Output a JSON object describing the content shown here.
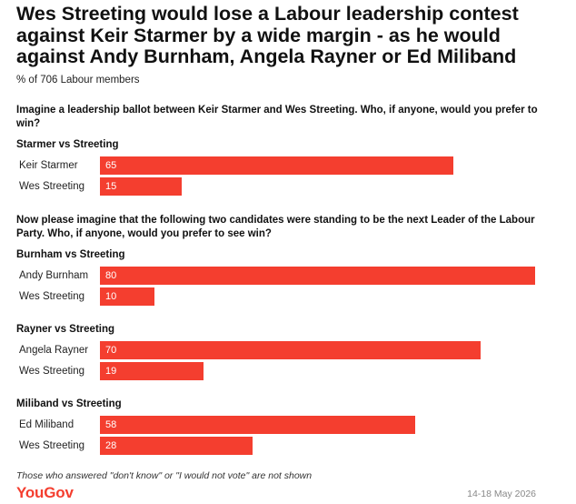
{
  "title": "Wes Streeting would lose a Labour leadership contest against Keir Starmer by a wide margin - as he would against Andy Burnham, Angela Rayner or Ed Miliband",
  "subtitle": "% of 706 Labour members",
  "question_1": "Imagine a leadership ballot between Keir Starmer and Wes Streeting. Who, if anyone, would you prefer to win?",
  "question_2": "Now please imagine that the following two candidates were standing to be the next Leader of the Labour Party. Who, if anyone, would you prefer to see win?",
  "footnote": "Those who answered \"don't know\" or \"I would not vote\" are not shown",
  "brand": "YouGov",
  "date": "14-18 May 2026",
  "bar_color": "#f43e2f",
  "chart_data": {
    "type": "bar",
    "orientation": "horizontal",
    "unit": "%",
    "xlim": [
      0,
      80
    ],
    "groups": [
      {
        "title": "Starmer vs Streeting",
        "bars": [
          {
            "label": "Keir Starmer",
            "value": 65
          },
          {
            "label": "Wes Streeting",
            "value": 15
          }
        ]
      },
      {
        "title": "Burnham vs Streeting",
        "bars": [
          {
            "label": "Andy Burnham",
            "value": 80
          },
          {
            "label": "Wes Streeting",
            "value": 10
          }
        ]
      },
      {
        "title": "Rayner vs Streeting",
        "bars": [
          {
            "label": "Angela Rayner",
            "value": 70
          },
          {
            "label": "Wes Streeting",
            "value": 19
          }
        ]
      },
      {
        "title": "Miliband vs Streeting",
        "bars": [
          {
            "label": "Ed Miliband",
            "value": 58
          },
          {
            "label": "Wes Streeting",
            "value": 28
          }
        ]
      }
    ]
  }
}
